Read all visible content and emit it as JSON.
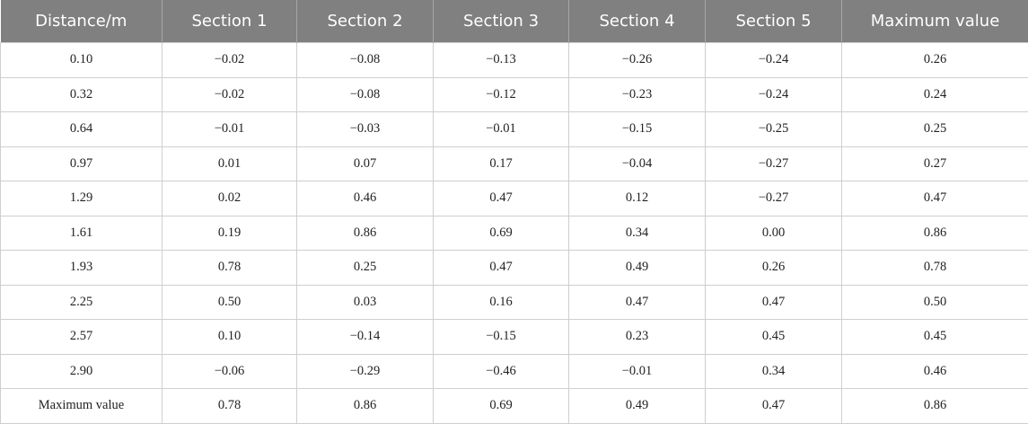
{
  "table": {
    "header": [
      "Distance/m",
      "Section 1",
      "Section 2",
      "Section 3",
      "Section 4",
      "Section 5",
      "Maximum value"
    ],
    "rows": [
      [
        "0.10",
        "−0.02",
        "−0.08",
        "−0.13",
        "−0.26",
        "−0.24",
        "0.26"
      ],
      [
        "0.32",
        "−0.02",
        "−0.08",
        "−0.12",
        "−0.23",
        "−0.24",
        "0.24"
      ],
      [
        "0.64",
        "−0.01",
        "−0.03",
        "−0.01",
        "−0.15",
        "−0.25",
        "0.25"
      ],
      [
        "0.97",
        "0.01",
        "0.07",
        "0.17",
        "−0.04",
        "−0.27",
        "0.27"
      ],
      [
        "1.29",
        "0.02",
        "0.46",
        "0.47",
        "0.12",
        "−0.27",
        "0.47"
      ],
      [
        "1.61",
        "0.19",
        "0.86",
        "0.69",
        "0.34",
        "0.00",
        "0.86"
      ],
      [
        "1.93",
        "0.78",
        "0.25",
        "0.47",
        "0.49",
        "0.26",
        "0.78"
      ],
      [
        "2.25",
        "0.50",
        "0.03",
        "0.16",
        "0.47",
        "0.47",
        "0.50"
      ],
      [
        "2.57",
        "0.10",
        "−0.14",
        "−0.15",
        "0.23",
        "0.45",
        "0.45"
      ],
      [
        "2.90",
        "−0.06",
        "−0.29",
        "−0.46",
        "−0.01",
        "0.34",
        "0.46"
      ],
      [
        "Maximum value",
        "0.78",
        "0.86",
        "0.69",
        "0.49",
        "0.47",
        "0.86"
      ]
    ]
  }
}
